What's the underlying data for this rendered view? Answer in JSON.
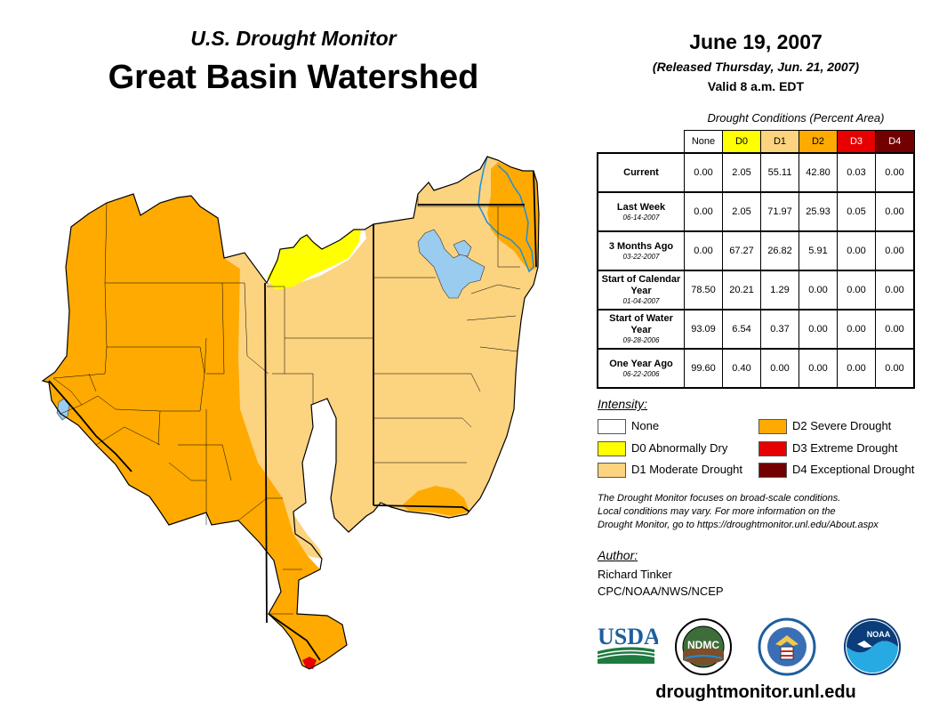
{
  "header": {
    "monitor_title": "U.S. Drought Monitor",
    "region_title": "Great Basin Watershed",
    "date": "June 19, 2007",
    "released": "(Released Thursday, Jun. 21, 2007)",
    "valid": "Valid 8 a.m. EDT"
  },
  "table": {
    "caption": "Drought Conditions (Percent Area)",
    "columns": [
      {
        "label": "None",
        "color": "#ffffff",
        "text_color": "#000000"
      },
      {
        "label": "D0",
        "color": "#ffff00",
        "text_color": "#000000"
      },
      {
        "label": "D1",
        "color": "#fcd37f",
        "text_color": "#000000"
      },
      {
        "label": "D2",
        "color": "#ffaa00",
        "text_color": "#000000"
      },
      {
        "label": "D3",
        "color": "#e60000",
        "text_color": "#ffffff"
      },
      {
        "label": "D4",
        "color": "#730000",
        "text_color": "#ffffff"
      }
    ],
    "rows": [
      {
        "label": "Current",
        "sub": "",
        "values": [
          "0.00",
          "2.05",
          "55.11",
          "42.80",
          "0.03",
          "0.00"
        ]
      },
      {
        "label": "Last Week",
        "sub": "06-14-2007",
        "values": [
          "0.00",
          "2.05",
          "71.97",
          "25.93",
          "0.05",
          "0.00"
        ]
      },
      {
        "label": "3 Months Ago",
        "sub": "03-22-2007",
        "values": [
          "0.00",
          "67.27",
          "26.82",
          "5.91",
          "0.00",
          "0.00"
        ]
      },
      {
        "label": "Start of Calendar Year",
        "sub": "01-04-2007",
        "values": [
          "78.50",
          "20.21",
          "1.29",
          "0.00",
          "0.00",
          "0.00"
        ]
      },
      {
        "label": "Start of Water Year",
        "sub": "09-28-2006",
        "values": [
          "93.09",
          "6.54",
          "0.37",
          "0.00",
          "0.00",
          "0.00"
        ]
      },
      {
        "label": "One Year Ago",
        "sub": "06-22-2006",
        "values": [
          "99.60",
          "0.40",
          "0.00",
          "0.00",
          "0.00",
          "0.00"
        ]
      }
    ]
  },
  "legend": {
    "title": "Intensity:",
    "items": [
      {
        "label": "None",
        "color": "#ffffff"
      },
      {
        "label": "D0 Abnormally Dry",
        "color": "#ffff00"
      },
      {
        "label": "D1 Moderate Drought",
        "color": "#fcd37f"
      },
      {
        "label": "D2 Severe Drought",
        "color": "#ffaa00"
      },
      {
        "label": "D3 Extreme Drought",
        "color": "#e60000"
      },
      {
        "label": "D4 Exceptional Drought",
        "color": "#730000"
      }
    ]
  },
  "note": {
    "line1": "The Drought Monitor focuses on broad-scale conditions.",
    "line2": "Local conditions may vary. For more information on the",
    "line3": "Drought Monitor, go to https://droughtmonitor.unl.edu/About.aspx"
  },
  "author": {
    "title": "Author:",
    "name": "Richard Tinker",
    "org": "CPC/NOAA/NWS/NCEP"
  },
  "logos": {
    "usda": "USDA",
    "ndmc": "NDMC",
    "noaa": "NOAA"
  },
  "footer": {
    "url": "droughtmonitor.unl.edu"
  },
  "map": {
    "colors": {
      "d0": "#ffff00",
      "d1": "#fcd37f",
      "d2": "#ffaa00",
      "d3": "#e60000",
      "water": "#99ccee",
      "river": "#1a8fe0"
    }
  }
}
